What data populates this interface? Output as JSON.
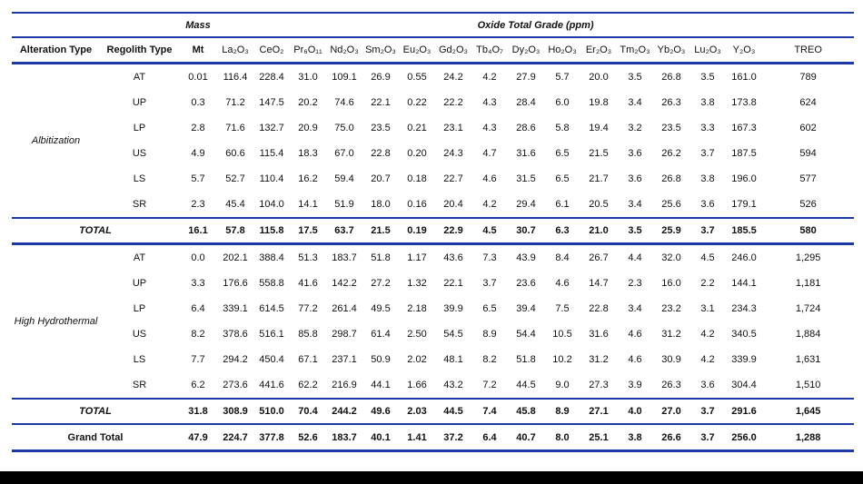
{
  "table": {
    "group_headers": {
      "mass": "Mass",
      "oxide": "Oxide Total Grade (ppm)"
    },
    "columns": [
      "Alteration Type",
      "Regolith Type",
      "Mt",
      "La₂O₃",
      "CeO₂",
      "Pr₆O₁₁",
      "Nd₂O₃",
      "Sm₂O₃",
      "Eu₂O₃",
      "Gd₂O₃",
      "Tb₄O₇",
      "Dy₂O₃",
      "Ho₂O₃",
      "Er₂O₃",
      "Tm₂O₃",
      "Yb₂O₃",
      "Lu₂O₃",
      "Y₂O₃",
      "TREO"
    ],
    "sections": [
      {
        "alteration_type": "Albitization",
        "rows": [
          {
            "regolith_type": "AT",
            "values": [
              "0.01",
              "116.4",
              "228.4",
              "31.0",
              "109.1",
              "26.9",
              "0.55",
              "24.2",
              "4.2",
              "27.9",
              "5.7",
              "20.0",
              "3.5",
              "26.8",
              "3.5",
              "161.0",
              "789"
            ]
          },
          {
            "regolith_type": "UP",
            "values": [
              "0.3",
              "71.2",
              "147.5",
              "20.2",
              "74.6",
              "22.1",
              "0.22",
              "22.2",
              "4.3",
              "28.4",
              "6.0",
              "19.8",
              "3.4",
              "26.3",
              "3.8",
              "173.8",
              "624"
            ]
          },
          {
            "regolith_type": "LP",
            "values": [
              "2.8",
              "71.6",
              "132.7",
              "20.9",
              "75.0",
              "23.5",
              "0.21",
              "23.1",
              "4.3",
              "28.6",
              "5.8",
              "19.4",
              "3.2",
              "23.5",
              "3.3",
              "167.3",
              "602"
            ]
          },
          {
            "regolith_type": "US",
            "values": [
              "4.9",
              "60.6",
              "115.4",
              "18.3",
              "67.0",
              "22.8",
              "0.20",
              "24.3",
              "4.7",
              "31.6",
              "6.5",
              "21.5",
              "3.6",
              "26.2",
              "3.7",
              "187.5",
              "594"
            ]
          },
          {
            "regolith_type": "LS",
            "values": [
              "5.7",
              "52.7",
              "110.4",
              "16.2",
              "59.4",
              "20.7",
              "0.18",
              "22.7",
              "4.6",
              "31.5",
              "6.5",
              "21.7",
              "3.6",
              "26.8",
              "3.8",
              "196.0",
              "577"
            ]
          },
          {
            "regolith_type": "SR",
            "values": [
              "2.3",
              "45.4",
              "104.0",
              "14.1",
              "51.9",
              "18.0",
              "0.16",
              "20.4",
              "4.2",
              "29.4",
              "6.1",
              "20.5",
              "3.4",
              "25.6",
              "3.6",
              "179.1",
              "526"
            ]
          }
        ],
        "total": {
          "label": "TOTAL",
          "values": [
            "16.1",
            "57.8",
            "115.8",
            "17.5",
            "63.7",
            "21.5",
            "0.19",
            "22.9",
            "4.5",
            "30.7",
            "6.3",
            "21.0",
            "3.5",
            "25.9",
            "3.7",
            "185.5",
            "580"
          ]
        }
      },
      {
        "alteration_type": "High Hydrothermal",
        "rows": [
          {
            "regolith_type": "AT",
            "values": [
              "0.0",
              "202.1",
              "388.4",
              "51.3",
              "183.7",
              "51.8",
              "1.17",
              "43.6",
              "7.3",
              "43.9",
              "8.4",
              "26.7",
              "4.4",
              "32.0",
              "4.5",
              "246.0",
              "1,295"
            ]
          },
          {
            "regolith_type": "UP",
            "values": [
              "3.3",
              "176.6",
              "558.8",
              "41.6",
              "142.2",
              "27.2",
              "1.32",
              "22.1",
              "3.7",
              "23.6",
              "4.6",
              "14.7",
              "2.3",
              "16.0",
              "2.2",
              "144.1",
              "1,181"
            ]
          },
          {
            "regolith_type": "LP",
            "values": [
              "6.4",
              "339.1",
              "614.5",
              "77.2",
              "261.4",
              "49.5",
              "2.18",
              "39.9",
              "6.5",
              "39.4",
              "7.5",
              "22.8",
              "3.4",
              "23.2",
              "3.1",
              "234.3",
              "1,724"
            ]
          },
          {
            "regolith_type": "US",
            "values": [
              "8.2",
              "378.6",
              "516.1",
              "85.8",
              "298.7",
              "61.4",
              "2.50",
              "54.5",
              "8.9",
              "54.4",
              "10.5",
              "31.6",
              "4.6",
              "31.2",
              "4.2",
              "340.5",
              "1,884"
            ]
          },
          {
            "regolith_type": "LS",
            "values": [
              "7.7",
              "294.2",
              "450.4",
              "67.1",
              "237.1",
              "50.9",
              "2.02",
              "48.1",
              "8.2",
              "51.8",
              "10.2",
              "31.2",
              "4.6",
              "30.9",
              "4.2",
              "339.9",
              "1,631"
            ]
          },
          {
            "regolith_type": "SR",
            "values": [
              "6.2",
              "273.6",
              "441.6",
              "62.2",
              "216.9",
              "44.1",
              "1.66",
              "43.2",
              "7.2",
              "44.5",
              "9.0",
              "27.3",
              "3.9",
              "26.3",
              "3.6",
              "304.4",
              "1,510"
            ]
          }
        ],
        "total": {
          "label": "TOTAL",
          "values": [
            "31.8",
            "308.9",
            "510.0",
            "70.4",
            "244.2",
            "49.6",
            "2.03",
            "44.5",
            "7.4",
            "45.8",
            "8.9",
            "27.1",
            "4.0",
            "27.0",
            "3.7",
            "291.6",
            "1,645"
          ]
        }
      }
    ],
    "grand_total": {
      "label": "Grand Total",
      "values": [
        "47.9",
        "224.7",
        "377.8",
        "52.6",
        "183.7",
        "40.1",
        "1.41",
        "37.2",
        "6.4",
        "40.7",
        "8.0",
        "25.1",
        "3.8",
        "26.6",
        "3.7",
        "256.0",
        "1,288"
      ]
    }
  },
  "colors": {
    "rule_blue": "#1c39a7",
    "bottom_bar": "#000000",
    "text": "#111111"
  }
}
